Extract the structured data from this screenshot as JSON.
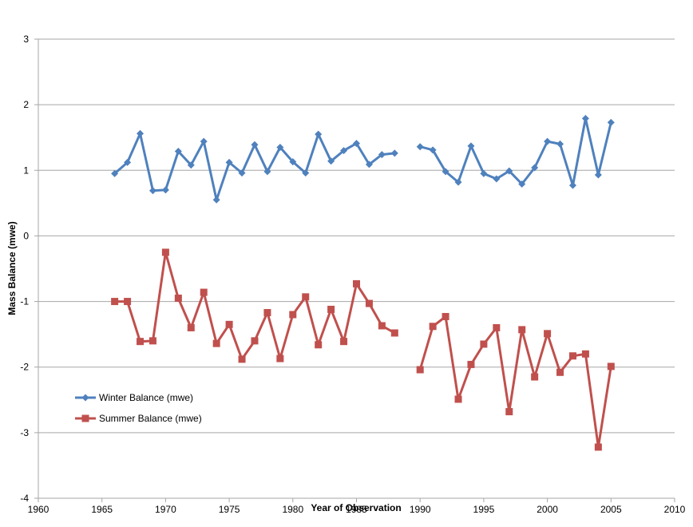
{
  "chart_data": {
    "type": "line",
    "title": "",
    "xlabel": "Year of Observation",
    "ylabel": "Mass Balance (mwe)",
    "xlim": [
      1960,
      2010
    ],
    "ylim": [
      -4,
      3
    ],
    "x_ticks": [
      "1960",
      "1965",
      "1970",
      "1975",
      "1980",
      "1985",
      "1990",
      "1995",
      "2000",
      "2005",
      "2010"
    ],
    "y_ticks": [
      "3",
      "2",
      "1",
      "0",
      "-1",
      "-2",
      "-3",
      "-4"
    ],
    "grid": "horizontal",
    "legend_position": "lower-left",
    "series": [
      {
        "name": "Winter Balance (mwe)",
        "color": "#4F81BD",
        "marker": "diamond",
        "x": [
          1966,
          1967,
          1968,
          1969,
          1970,
          1971,
          1972,
          1973,
          1974,
          1975,
          1976,
          1977,
          1978,
          1979,
          1980,
          1981,
          1982,
          1983,
          1984,
          1985,
          1986,
          1987,
          1988,
          1990,
          1991,
          1992,
          1993,
          1994,
          1995,
          1996,
          1997,
          1998,
          1999,
          2000,
          2001,
          2002,
          2003,
          2004,
          2005
        ],
        "values": [
          0.95,
          1.12,
          1.56,
          0.69,
          0.7,
          1.29,
          1.08,
          1.44,
          0.55,
          1.12,
          0.96,
          1.39,
          0.98,
          1.35,
          1.13,
          0.96,
          1.55,
          1.14,
          1.3,
          1.41,
          1.09,
          1.24,
          1.26,
          1.36,
          1.31,
          0.98,
          0.82,
          1.37,
          0.95,
          0.87,
          0.99,
          0.79,
          1.04,
          1.44,
          1.4,
          0.77,
          1.79,
          0.93,
          1.73
        ]
      },
      {
        "name": "Summer Balance (mwe)",
        "color": "#C0504D",
        "marker": "square",
        "x": [
          1966,
          1967,
          1968,
          1969,
          1970,
          1971,
          1972,
          1973,
          1974,
          1975,
          1976,
          1977,
          1978,
          1979,
          1980,
          1981,
          1982,
          1983,
          1984,
          1985,
          1986,
          1987,
          1988,
          1990,
          1991,
          1992,
          1993,
          1994,
          1995,
          1996,
          1997,
          1998,
          1999,
          2000,
          2001,
          2002,
          2003,
          2004,
          2005
        ],
        "values": [
          -1.0,
          -1.0,
          -1.61,
          -1.6,
          -0.25,
          -0.95,
          -1.4,
          -0.86,
          -1.64,
          -1.35,
          -1.88,
          -1.6,
          -1.17,
          -1.87,
          -1.2,
          -0.93,
          -1.66,
          -1.12,
          -1.61,
          -0.73,
          -1.03,
          -1.37,
          -1.48,
          -2.04,
          -1.38,
          -1.23,
          -2.49,
          -1.96,
          -1.65,
          -1.4,
          -2.68,
          -1.43,
          -2.15,
          -1.49,
          -2.08,
          -1.83,
          -1.8,
          -3.22,
          -1.99
        ]
      }
    ]
  }
}
